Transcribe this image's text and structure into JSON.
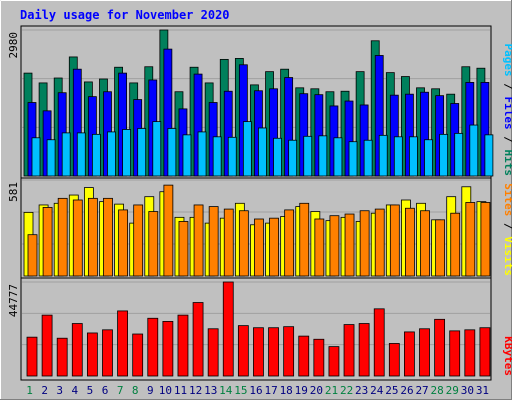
{
  "chart_data": {
    "type": "bar",
    "title": "Daily usage for November 2020",
    "categories": [
      "1",
      "2",
      "3",
      "4",
      "5",
      "6",
      "7",
      "8",
      "9",
      "10",
      "11",
      "12",
      "13",
      "14",
      "15",
      "16",
      "17",
      "18",
      "19",
      "20",
      "21",
      "22",
      "23",
      "24",
      "25",
      "26",
      "27",
      "28",
      "29",
      "30",
      "31"
    ],
    "weekend_days": [
      "1",
      "7",
      "8",
      "14",
      "15",
      "21",
      "22",
      "28",
      "29"
    ],
    "panels": [
      {
        "id": "top",
        "ymax_label": "2980",
        "ylim": [
          0,
          2980
        ],
        "right_labels": [
          "Pages",
          "Files",
          "Hits"
        ],
        "series": [
          {
            "name": "Hits",
            "color": "#00805c",
            "values": [
              2100,
              1900,
              2000,
              2430,
              1920,
              1980,
              2220,
              1900,
              2230,
              2980,
              1720,
              2220,
              1900,
              2380,
              2400,
              1860,
              2130,
              2180,
              1800,
              1780,
              1720,
              1730,
              2130,
              2760,
              2110,
              2030,
              1800,
              1780,
              1670,
              2230,
              2200
            ]
          },
          {
            "name": "Files",
            "color": "#0000ff",
            "values": [
              1500,
              1330,
              1700,
              2180,
              1620,
              1720,
              2100,
              1560,
              1960,
              2590,
              1370,
              2080,
              1500,
              1730,
              2270,
              1740,
              1780,
              2010,
              1680,
              1660,
              1430,
              1530,
              1450,
              2460,
              1650,
              1670,
              1710,
              1640,
              1480,
              1910,
              1910
            ]
          },
          {
            "name": "Pages",
            "color": "#00c0ff",
            "values": [
              780,
              740,
              880,
              880,
              850,
              900,
              950,
              970,
              1110,
              970,
              840,
              900,
              800,
              790,
              1110,
              980,
              770,
              730,
              810,
              820,
              780,
              700,
              730,
              830,
              800,
              800,
              740,
              850,
              870,
              1040,
              840
            ]
          }
        ]
      },
      {
        "id": "middle",
        "ymax_label": "581",
        "ylim": [
          0,
          581
        ],
        "right_labels": [
          "Sites",
          "Visits"
        ],
        "series": [
          {
            "name": "Visits",
            "color": "#ffff00",
            "values": [
              385,
              430,
              440,
              490,
              535,
              450,
              435,
              320,
              480,
              510,
              355,
              355,
              320,
              350,
              440,
              310,
              320,
              360,
              420,
              390,
              335,
              355,
              330,
              380,
              430,
              460,
              440,
              340,
              480,
              540,
              450
            ]
          },
          {
            "name": "Sites",
            "color": "#ff8000",
            "values": [
              250,
              415,
              470,
              460,
              470,
              470,
              400,
              430,
              390,
              550,
              330,
              430,
              420,
              405,
              395,
              345,
              350,
              400,
              440,
              345,
              365,
              375,
              395,
              405,
              430,
              410,
              395,
              340,
              380,
              445,
              445
            ]
          }
        ]
      },
      {
        "id": "bottom",
        "ymax_label": "44777",
        "ylim": [
          0,
          44777
        ],
        "right_labels": [
          "KBytes"
        ],
        "series": [
          {
            "name": "KBytes",
            "color": "#ff0000",
            "values": [
              18500,
              29000,
              18000,
              25000,
              20500,
              22000,
              31000,
              20000,
              27500,
              26000,
              29000,
              35000,
              22500,
              44777,
              24000,
              23000,
              23000,
              23500,
              19000,
              17500,
              14000,
              24500,
              25000,
              32000,
              15500,
              21000,
              22500,
              27000,
              21500,
              22000,
              23000
            ]
          }
        ]
      }
    ]
  },
  "colors": {
    "background": "#c0c0c0",
    "title": "#0000ff",
    "weekday_label": "#000080",
    "weekend_label": "#008040",
    "separator": "#000000"
  }
}
